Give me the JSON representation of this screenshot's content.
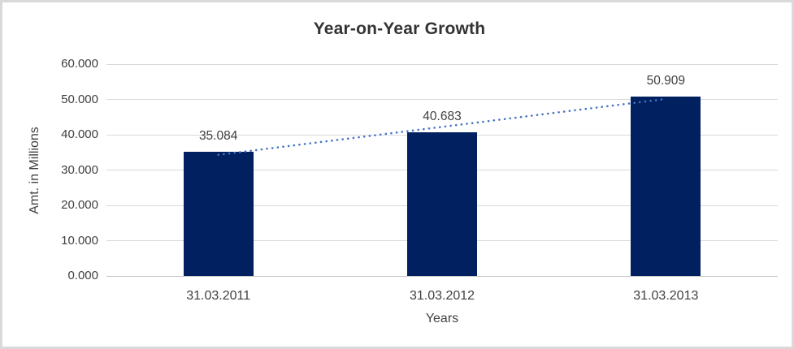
{
  "chart": {
    "title": "Year-on-Year Growth",
    "background_color": "#ffffff",
    "frame_border_color": "#d9d9d9"
  },
  "chart_data": {
    "type": "bar",
    "title": "Year-on-Year Growth",
    "categories": [
      "31.03.2011",
      "31.03.2012",
      "31.03.2013"
    ],
    "values": [
      35.084,
      40.683,
      50.909
    ],
    "data_labels": [
      "35.084",
      "40.683",
      "50.909"
    ],
    "xlabel": "Years",
    "ylabel": "Amt. in Millions",
    "ylim": [
      0,
      60
    ],
    "ytick_step": 10,
    "ytick_labels": [
      "0.000",
      "10.000",
      "20.000",
      "30.000",
      "40.000",
      "50.000",
      "60.000"
    ],
    "grid": true,
    "legend": "none",
    "bar_color": "#002060",
    "gridline_color": "#d9d9d9",
    "axis_line_color": "#c6c6c6",
    "text_color": "#404040",
    "trendline": {
      "type": "linear",
      "style": "dotted",
      "color": "#4472c4",
      "start_value": 34.31,
      "end_value": 50.14
    }
  }
}
